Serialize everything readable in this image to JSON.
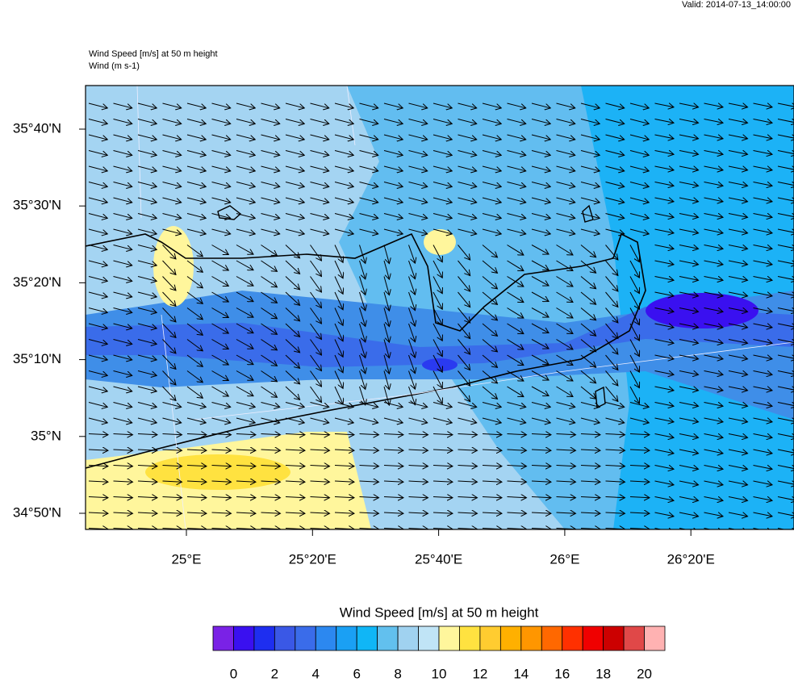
{
  "header": {
    "valid": "Valid: 2014-07-13_14:00:00",
    "title": "Wind Speed [m/s] at 50 m height",
    "subtitle": "Wind   (m s-1)"
  },
  "axes": {
    "lat_labels": [
      "35°40'N",
      "35°30'N",
      "35°20'N",
      "35°10'N",
      "35°N",
      "34°50'N"
    ],
    "lon_labels": [
      "25°E",
      "25°20'E",
      "25°40'E",
      "26°E",
      "26°20'E"
    ]
  },
  "colorbar": {
    "title": "Wind Speed [m/s] at 50 m height",
    "colors": [
      "#7a22e6",
      "#3a10f0",
      "#1e2ef0",
      "#3a58e6",
      "#3a6cea",
      "#2c88f0",
      "#1aa0f4",
      "#10b6f6",
      "#62c0ee",
      "#a0d2f0",
      "#c0e4f6",
      "#fff69c",
      "#ffe240",
      "#ffcc30",
      "#ffb000",
      "#ff9600",
      "#ff6800",
      "#ff3000",
      "#f00000",
      "#cc0000",
      "#e04848",
      "#ffb2b2"
    ],
    "labels": [
      "0",
      "2",
      "4",
      "6",
      "8",
      "10",
      "12",
      "14",
      "16",
      "18",
      "20"
    ]
  }
}
